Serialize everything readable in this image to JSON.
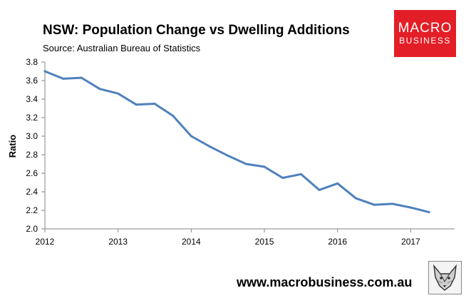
{
  "header": {
    "title": "NSW: Population Change vs Dwelling Additions",
    "source": "Source: Australian Bureau of Statistics"
  },
  "logo": {
    "line1": "MACRO",
    "line2": "BUSINESS",
    "color": "#e41e26"
  },
  "footer": {
    "url": "www.macrobusiness.com.au",
    "icon": "fox-icon"
  },
  "chart_data": {
    "type": "line",
    "title": "NSW: Population Change vs Dwelling Additions",
    "xlabel": "",
    "ylabel": "Ratio",
    "ylim": [
      2.0,
      3.8
    ],
    "yticks": [
      "2.0",
      "2.2",
      "2.4",
      "2.6",
      "2.8",
      "3.0",
      "3.2",
      "3.4",
      "3.6",
      "3.8"
    ],
    "xlim": [
      2012,
      2017.6
    ],
    "xticks": [
      "2012",
      "2013",
      "2014",
      "2015",
      "2016",
      "2017"
    ],
    "grid": false,
    "legend": "none",
    "color": "#4f81bd",
    "series": [
      {
        "name": "Ratio",
        "x": [
          2012.0,
          2012.25,
          2012.5,
          2012.75,
          2013.0,
          2013.25,
          2013.5,
          2013.75,
          2014.0,
          2014.25,
          2014.5,
          2014.75,
          2015.0,
          2015.25,
          2015.5,
          2015.75,
          2016.0,
          2016.25,
          2016.5,
          2016.75,
          2017.0,
          2017.25
        ],
        "y": [
          3.7,
          3.62,
          3.63,
          3.51,
          3.46,
          3.34,
          3.35,
          3.22,
          3.0,
          2.89,
          2.79,
          2.7,
          2.67,
          2.55,
          2.59,
          2.42,
          2.49,
          2.33,
          2.26,
          2.27,
          2.23,
          2.18
        ]
      }
    ]
  }
}
